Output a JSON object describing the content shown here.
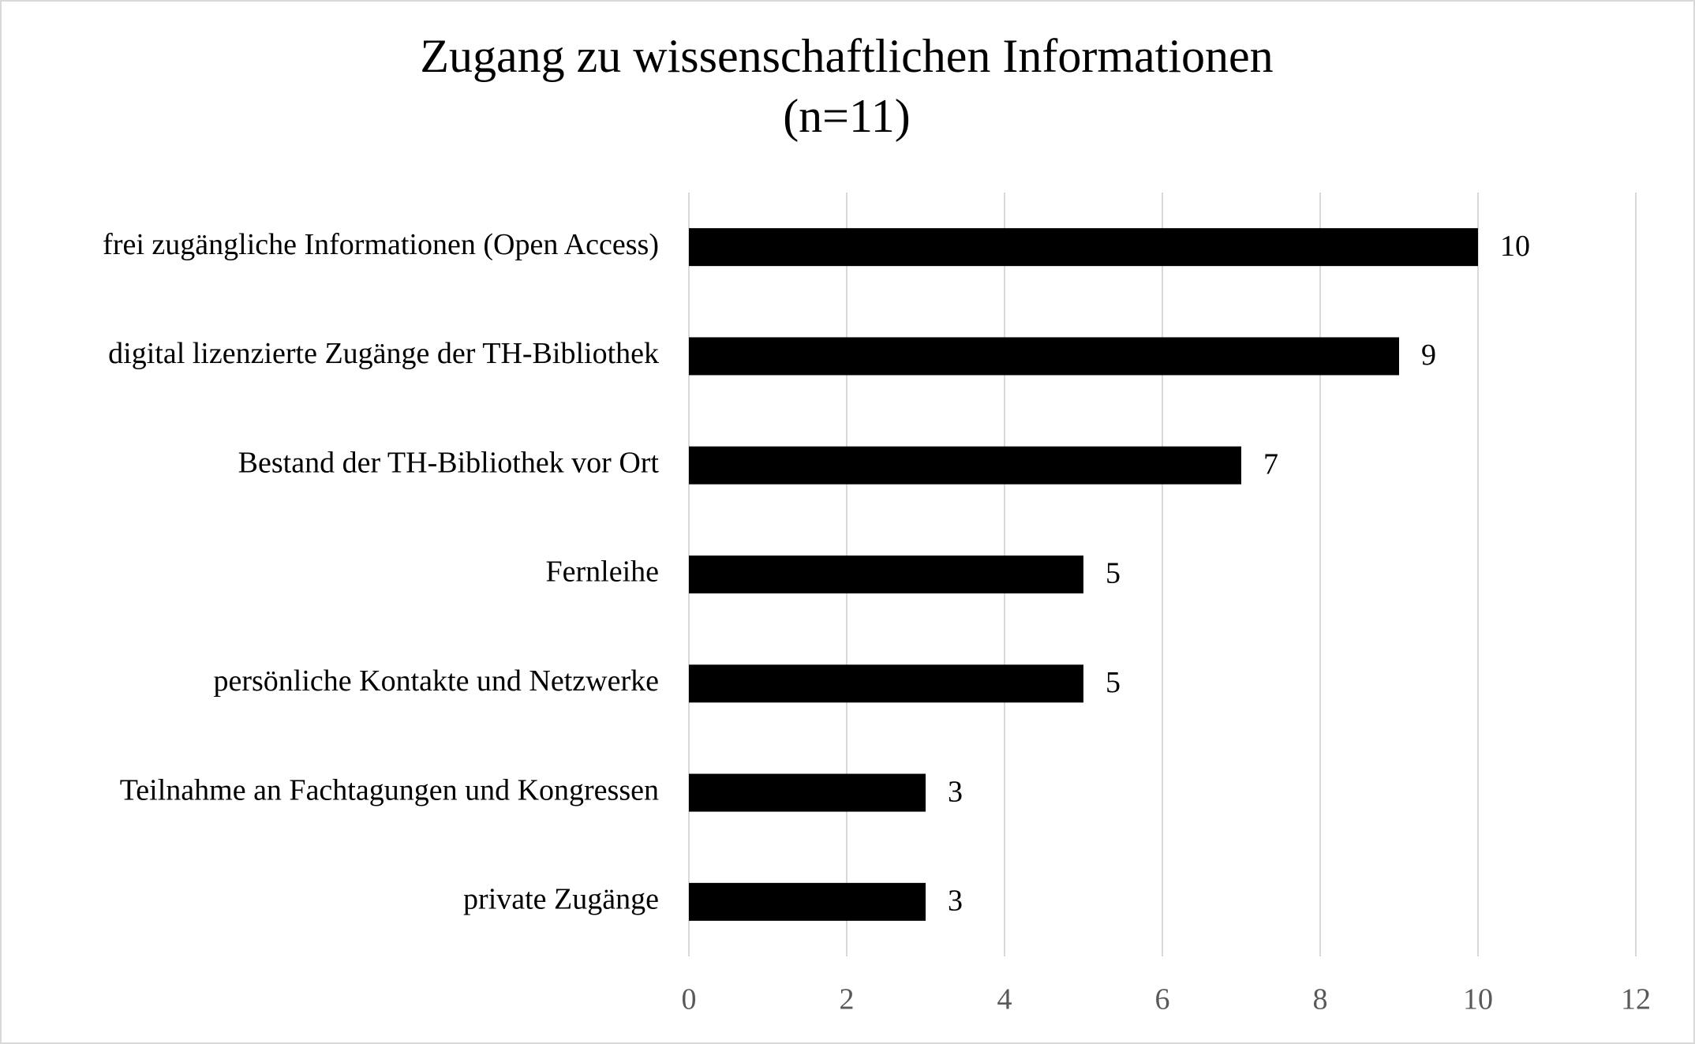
{
  "chart_data": {
    "type": "barh",
    "title": "Zugang zu wissenschaftlichen Informationen",
    "subtitle": "(n=11)",
    "categories": [
      "frei zugängliche Informationen (Open Access)",
      "digital lizenzierte Zugänge der TH-Bibliothek",
      "Bestand der TH-Bibliothek vor Ort",
      "Fernleihe",
      "persönliche Kontakte und Netzwerke",
      "Teilnahme an Fachtagungen und Kongressen",
      "private Zugänge"
    ],
    "values": [
      10,
      9,
      7,
      5,
      5,
      3,
      3
    ],
    "color": "#000000",
    "xlim": [
      0,
      12
    ],
    "xticks": [
      0,
      2,
      4,
      6,
      8,
      10,
      12
    ],
    "grid": true
  }
}
